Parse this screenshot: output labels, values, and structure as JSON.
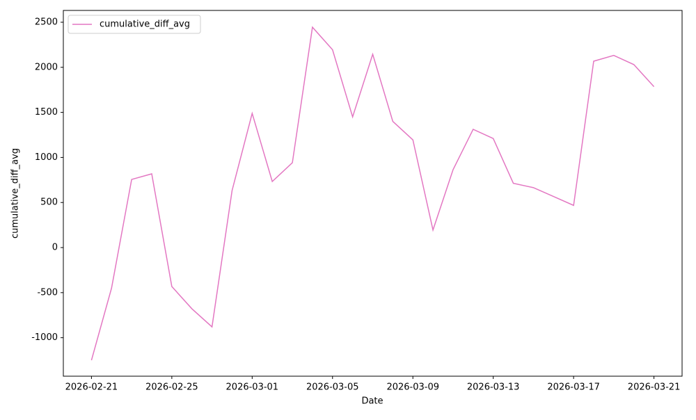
{
  "chart_data": {
    "type": "line",
    "x": [
      "2026-02-21",
      "2026-02-22",
      "2026-02-23",
      "2026-02-24",
      "2026-02-25",
      "2026-02-26",
      "2026-02-27",
      "2026-02-28",
      "2026-03-01",
      "2026-03-02",
      "2026-03-03",
      "2026-03-04",
      "2026-03-05",
      "2026-03-06",
      "2026-03-07",
      "2026-03-08",
      "2026-03-09",
      "2026-03-10",
      "2026-03-11",
      "2026-03-12",
      "2026-03-13",
      "2026-03-14",
      "2026-03-15",
      "2026-03-16",
      "2026-03-17",
      "2026-03-18",
      "2026-03-19",
      "2026-03-20",
      "2026-03-21"
    ],
    "series": [
      {
        "name": "cumulative_diff_avg",
        "color": "#e377c2",
        "values": [
          -1250,
          -450,
          756,
          818,
          -432,
          -679,
          -880,
          633,
          1489,
          733,
          941,
          2445,
          2195,
          1450,
          2145,
          1400,
          1195,
          195,
          864,
          1312,
          1210,
          713,
          665,
          567,
          468,
          2068,
          2132,
          2030,
          1785
        ]
      }
    ],
    "x_label": "Date",
    "y_label": "cumulative_diff_avg",
    "ylim": [
      -1427,
      2631
    ],
    "yticks": [
      -1000,
      -500,
      0,
      500,
      1000,
      1500,
      2000,
      2500
    ],
    "xticks": [
      "2026-02-21",
      "2026-02-25",
      "2026-03-01",
      "2026-03-05",
      "2026-03-09",
      "2026-03-13",
      "2026-03-17",
      "2026-03-21"
    ],
    "grid": false,
    "legend": "upper left"
  }
}
